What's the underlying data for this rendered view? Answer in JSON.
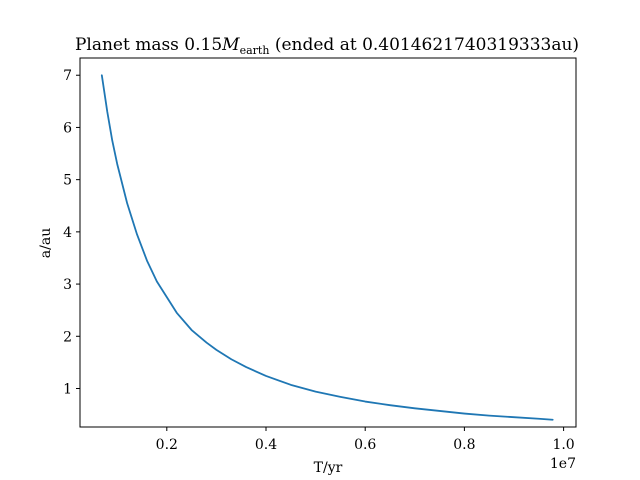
{
  "chart_data": {
    "type": "line",
    "title": {
      "prefix": "Planet mass 0.15",
      "symbol": "M",
      "subscript": "earth",
      "suffix": " (ended at 0.4014621740319333au)"
    },
    "xlabel": "T/yr",
    "ylabel": "a/au",
    "x_offset_label": "1e7",
    "xlim": [
      0.025,
      1.025
    ],
    "ylim": [
      0.2625,
      7.33
    ],
    "xticks": [
      0.2,
      0.4,
      0.6,
      0.8,
      1.0
    ],
    "xtick_labels": [
      "0.2",
      "0.4",
      "0.6",
      "0.8",
      "1.0"
    ],
    "yticks": [
      1,
      2,
      3,
      4,
      5,
      6,
      7
    ],
    "ytick_labels": [
      "1",
      "2",
      "3",
      "4",
      "5",
      "6",
      "7"
    ],
    "grid": false,
    "series": [
      {
        "name": "a(T)",
        "color": "#1f77b4",
        "x": [
          0.069,
          0.08,
          0.09,
          0.1,
          0.12,
          0.14,
          0.16,
          0.18,
          0.2,
          0.22,
          0.25,
          0.28,
          0.3,
          0.33,
          0.36,
          0.4,
          0.45,
          0.5,
          0.55,
          0.6,
          0.65,
          0.7,
          0.75,
          0.8,
          0.85,
          0.9,
          0.95,
          0.978
        ],
        "y": [
          7.0,
          6.3,
          5.75,
          5.3,
          4.55,
          3.95,
          3.45,
          3.05,
          2.75,
          2.45,
          2.12,
          1.88,
          1.74,
          1.56,
          1.41,
          1.24,
          1.07,
          0.94,
          0.84,
          0.75,
          0.68,
          0.62,
          0.57,
          0.52,
          0.48,
          0.45,
          0.42,
          0.4015
        ]
      }
    ]
  }
}
